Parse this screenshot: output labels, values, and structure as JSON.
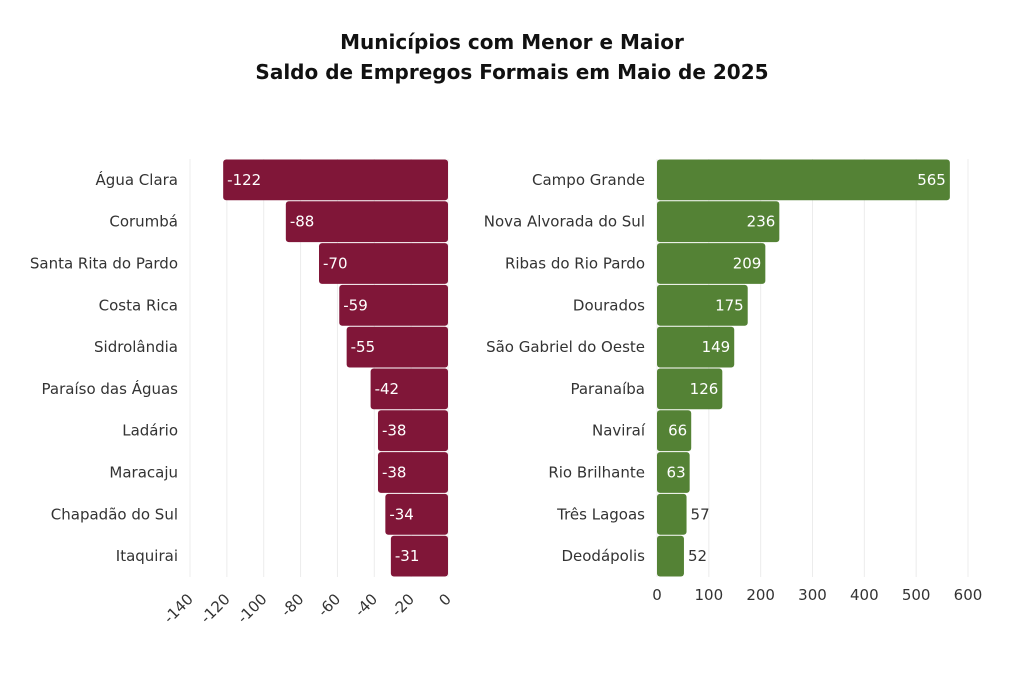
{
  "title_line1": "Municípios com Menor e Maior",
  "title_line2": "Saldo de Empregos Formais em Maio de 2025",
  "chart_data": [
    {
      "type": "bar",
      "orientation": "horizontal",
      "color": "#801638",
      "categories": [
        "Água Clara",
        "Corumbá",
        "Santa Rita do Pardo",
        "Costa Rica",
        "Sidrolândia",
        "Paraíso das Águas",
        "Ladário",
        "Maracaju",
        "Chapadão do Sul",
        "Itaquirai"
      ],
      "values": [
        -122,
        -88,
        -70,
        -59,
        -55,
        -42,
        -38,
        -38,
        -34,
        -31
      ],
      "xlim": [
        -140,
        0
      ],
      "xticks": [
        -140,
        -120,
        -100,
        -80,
        -60,
        -40,
        -20,
        0
      ],
      "grid": true
    },
    {
      "type": "bar",
      "orientation": "horizontal",
      "color": "#548235",
      "categories": [
        "Campo Grande",
        "Nova Alvorada do Sul",
        "Ribas do Rio Pardo",
        "Dourados",
        "São Gabriel do Oeste",
        "Paranaíba",
        "Naviraí",
        "Rio Brilhante",
        "Três Lagoas",
        "Deodápolis"
      ],
      "values": [
        565,
        236,
        209,
        175,
        149,
        126,
        66,
        63,
        57,
        52
      ],
      "xlim": [
        0,
        600
      ],
      "xticks": [
        0,
        100,
        200,
        300,
        400,
        500,
        600
      ],
      "grid": true
    }
  ]
}
